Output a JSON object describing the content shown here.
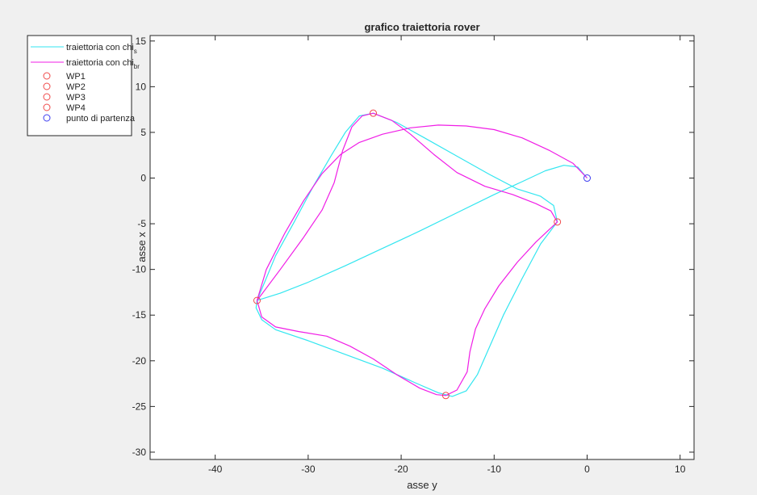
{
  "chart_data": {
    "type": "line",
    "title": "grafico traiettoria rover",
    "xlabel": "asse y",
    "ylabel": "asse x",
    "xlim": [
      -47,
      11.5
    ],
    "ylim": [
      -30.8,
      15.6
    ],
    "xticks": [
      -40,
      -30,
      -20,
      -10,
      0,
      10
    ],
    "yticks": [
      -30,
      -25,
      -20,
      -15,
      -10,
      -5,
      0,
      5,
      10,
      15
    ],
    "grid": false,
    "legend_position": "outside top-left",
    "colors": {
      "chi_s": "#33e6f0",
      "chi_br": "#f01ee6",
      "waypoint": "#f04a4a",
      "start": "#3d3df0",
      "axes": "#262626",
      "figure_bg": "#f0f0f0",
      "axes_bg": "#ffffff"
    },
    "legend": [
      {
        "label": "traiettoria con chi",
        "sub": "s",
        "kind": "line",
        "color_key": "chi_s"
      },
      {
        "label": "traiettoria con chi",
        "sub": "br",
        "kind": "line",
        "color_key": "chi_br"
      },
      {
        "label": "WP1",
        "sub": "",
        "kind": "marker",
        "color_key": "waypoint"
      },
      {
        "label": "WP2",
        "sub": "",
        "kind": "marker",
        "color_key": "waypoint"
      },
      {
        "label": "WP3",
        "sub": "",
        "kind": "marker",
        "color_key": "waypoint"
      },
      {
        "label": "WP4",
        "sub": "",
        "kind": "marker",
        "color_key": "waypoint"
      },
      {
        "label": "punto di partenza",
        "sub": "",
        "kind": "marker",
        "color_key": "start"
      }
    ],
    "series": [
      {
        "key": "chi_s",
        "x": [
          0,
          -0.5,
          -1.5,
          -3,
          -4.5,
          -6,
          -7.5,
          -9,
          -11,
          -13,
          -15,
          -17,
          -19,
          -21,
          -22,
          -22.8,
          -23.2,
          -22.6,
          -21.5,
          -19.5,
          -17,
          -14,
          -11,
          -8.5,
          -6.5,
          -5,
          -4.2,
          -3.8,
          -3.7,
          -3.5,
          -3.7,
          -4.3,
          -5.2,
          -6.5,
          -8,
          -9.5,
          -11,
          -12.5,
          -14,
          -15.2,
          -16.5,
          -20,
          -24,
          -28,
          -31,
          -33.5,
          -35,
          -35.6,
          -35.5,
          -35.2,
          -34.9,
          -34,
          -33,
          -32,
          -31,
          -30,
          -29,
          -28,
          -27,
          -26,
          -25,
          -24,
          -23,
          -22,
          -21,
          -20,
          -18,
          -16,
          -14,
          -12,
          -10,
          -8,
          -6,
          -4.5,
          -3,
          -1.5,
          -0.5,
          0
        ],
        "y": [
          0,
          1,
          1.4,
          1.3,
          0.8,
          0.1,
          -0.8,
          -1.7,
          -3,
          -4.3,
          -5.5,
          -6.8,
          -8.2,
          -9.5,
          -10.3,
          -11,
          -11.6,
          -12.2,
          -12.9,
          -13.4,
          -14.2,
          -14.8,
          -15.6,
          -16.4,
          -17,
          -17.4,
          -17.2,
          -17.1,
          -16.8,
          -16.6,
          -16.2,
          -15.5,
          -14.4,
          -13.3,
          -12.7,
          -12.2,
          -11.5,
          -10.8,
          -10.1,
          -9.4,
          -8.7,
          -8.2,
          -8.1,
          -8.1,
          -8.1,
          -8.2,
          -8.2,
          -8,
          -7.6,
          -7.2,
          -6.8,
          -6.1,
          -5.5,
          -4.8,
          -4.1,
          -3.4,
          -2.7,
          -2,
          -1.3,
          -0.6,
          0.1,
          0.7,
          1.4,
          2,
          2.7,
          3.4,
          4.1,
          4.7,
          5.4,
          6.1,
          6.7,
          7.1,
          7.3,
          7.2,
          6.6,
          5.3,
          3.5,
          1.5
        ],
        "note_order": "reversed"
      },
      {
        "key": "chi_br",
        "x": [
          0,
          -1,
          -3,
          -6,
          -9,
          -12,
          -15,
          -18,
          -21,
          -24,
          -26,
          -27.5,
          -29,
          -30.5,
          -32,
          -33.5,
          -35,
          -35.6,
          -35,
          -33,
          -30,
          -27,
          -24,
          -21.5,
          -19,
          -17,
          -15.2,
          -13.5,
          -12.8,
          -12.5,
          -12,
          -11.5,
          -10.5,
          -9,
          -7.5,
          -6,
          -4.5,
          -3.5,
          -4,
          -6,
          -9,
          -12,
          -15,
          -18,
          -21,
          -23,
          -24.5,
          -25.5,
          -26.5,
          -27,
          -27.5,
          -28,
          -28.5,
          -29,
          -30,
          -31,
          -32.5,
          -34,
          -35,
          -35.6,
          -35,
          -33,
          -30,
          -27,
          -24,
          -21,
          -19,
          -17,
          -15.2,
          -14,
          -12.5,
          -11.5,
          -10.5,
          -9.5,
          -8.5,
          -7.5,
          -6.2,
          -5,
          -4,
          -3.5
        ],
        "y": [
          0,
          1.6,
          3,
          4.3,
          5.1,
          5.6,
          5.8,
          5.7,
          5.3,
          4.5,
          3.6,
          2.6,
          1.3,
          -0.2,
          -1.8,
          -3.6,
          -13.4,
          -15.5,
          -16.2,
          -16.9,
          -17.4,
          -18,
          -19.1,
          -20.5,
          -21.9,
          -23.1,
          -23.8,
          -23.3,
          -22,
          -20.2,
          -18,
          -16,
          -14,
          -12,
          -9.5,
          -7,
          -5.5,
          -4.8,
          -4,
          -2.8,
          -1.2,
          0.5,
          2.2,
          3.8,
          5.5,
          7.1,
          6.4,
          5,
          3,
          1,
          -1,
          -3,
          -5,
          -7,
          -9,
          -11,
          -12.5,
          -13.2,
          -13.4,
          -13.4,
          -13.4,
          -13.4,
          -13.4,
          -13.4,
          -13.4,
          -13.4,
          -13.4,
          -13.4,
          -13.4,
          -13.4,
          -13.4,
          -13.4,
          -13.4,
          -13.4,
          -13.4,
          -13.4,
          -13.4,
          -13.4,
          -13.4,
          -13.4
        ]
      }
    ],
    "waypoints": [
      {
        "name": "WP1",
        "x": -23,
        "y": 7.1
      },
      {
        "name": "WP2",
        "x": -35.5,
        "y": -13.4
      },
      {
        "name": "WP3",
        "x": -15.2,
        "y": -23.8
      },
      {
        "name": "WP4",
        "x": -3.2,
        "y": -4.8
      }
    ],
    "start": {
      "name": "punto di partenza",
      "x": 0,
      "y": 0
    }
  }
}
